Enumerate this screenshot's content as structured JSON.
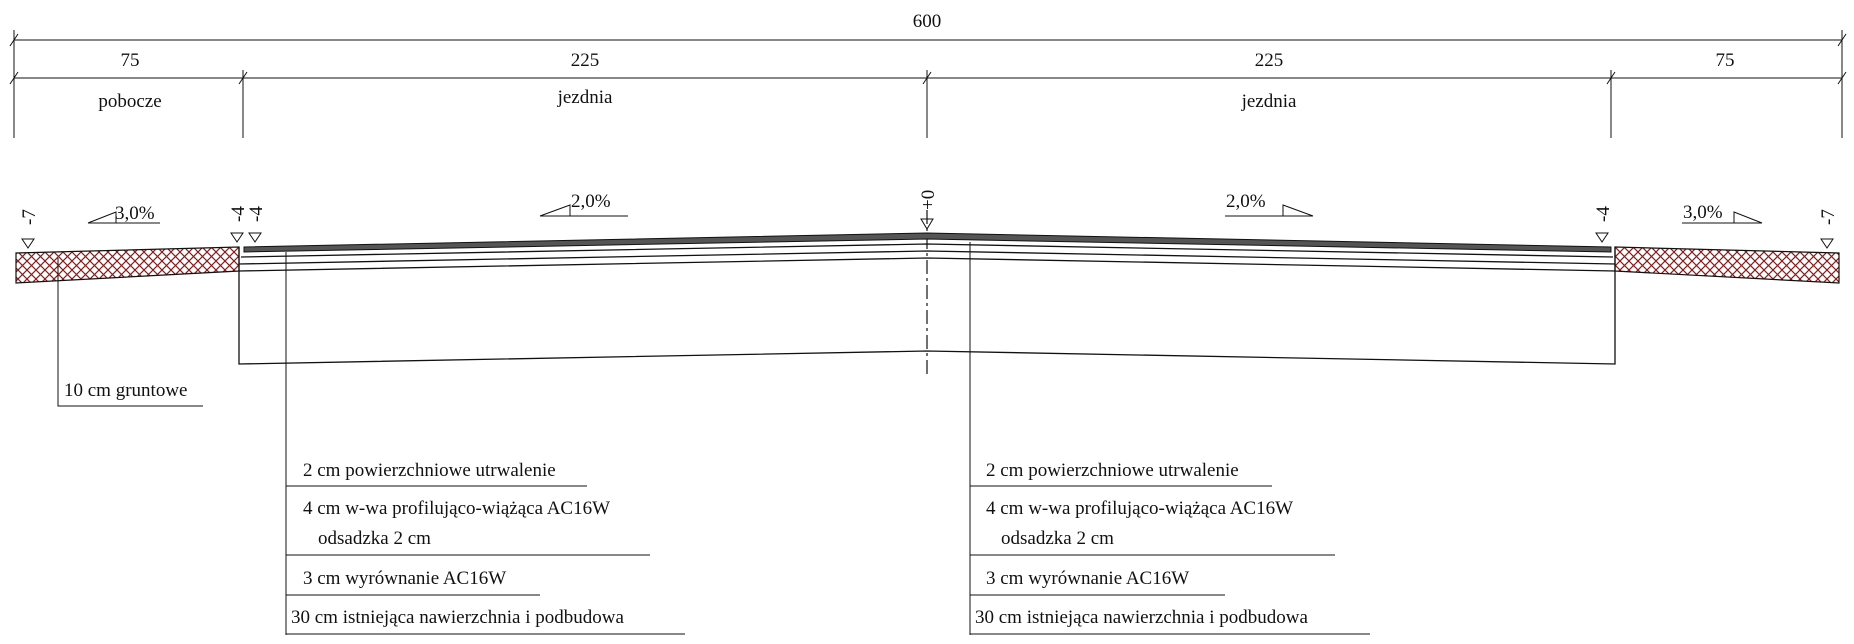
{
  "dimensions": {
    "total": "600",
    "segments": [
      "75",
      "225",
      "225",
      "75"
    ],
    "lane_labels": [
      "pobocze",
      "jezdnia",
      "jezdnia"
    ]
  },
  "slopes": [
    "3,0%",
    "2,0%",
    "2,0%",
    "3,0%"
  ],
  "elevations": [
    "-7",
    "-4",
    "-4",
    "+0",
    "-4",
    "-7"
  ],
  "soil_callout": "10 cm gruntowe",
  "layers_left": [
    "2 cm powierzchniowe utrwalenie",
    "4 cm w-wa profilująco-wiążąca AC16W",
    "odsadzka 2 cm",
    "3 cm wyrównanie AC16W",
    "30 cm istniejąca nawierzchnia i podbudowa"
  ],
  "layers_right": [
    "2 cm powierzchniowe utrwalenie",
    "4 cm w-wa profilująco-wiążąca AC16W",
    "odsadzka 2 cm",
    "3 cm wyrównanie AC16W",
    "30 cm istniejąca nawierzchnia i podbudowa"
  ],
  "colors": {
    "line": "#111111",
    "hatch": "#8b1a1a",
    "road_surface": "#555555"
  }
}
